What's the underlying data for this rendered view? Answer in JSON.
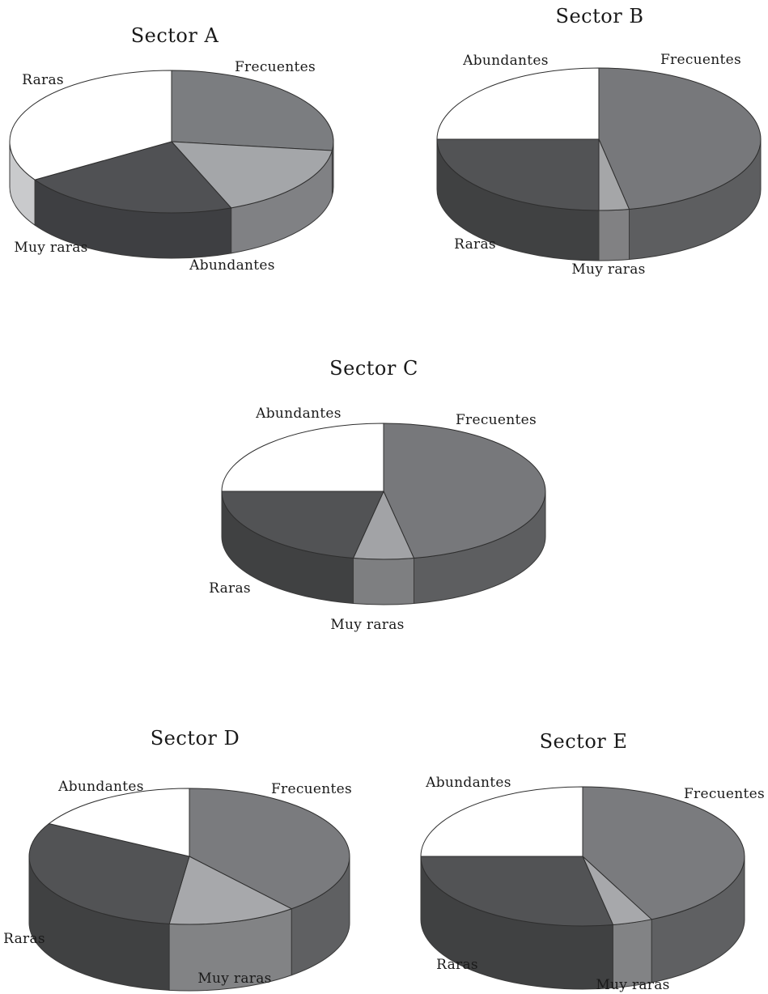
{
  "chart_data": [
    {
      "type": "pie",
      "title": "Sector A",
      "categories": [
        "Frecuentes",
        "Abundantes",
        "Muy raras",
        "Raras"
      ],
      "values": [
        27,
        17,
        22,
        34
      ],
      "colors": [
        "#7b7d80",
        "#a4a6a9",
        "#505154",
        "#ffffff"
      ]
    },
    {
      "type": "pie",
      "title": "Sector B",
      "categories": [
        "Frecuentes",
        "Muy raras",
        "Raras",
        "Abundantes"
      ],
      "values": [
        47,
        3,
        25,
        25
      ],
      "colors": [
        "#77787b",
        "#a5a6a8",
        "#525355",
        "#ffffff"
      ]
    },
    {
      "type": "pie",
      "title": "Sector C",
      "categories": [
        "Frecuentes",
        "Muy raras",
        "Raras",
        "Abundantes"
      ],
      "values": [
        47,
        6,
        22,
        25
      ],
      "colors": [
        "#77787b",
        "#a2a3a6",
        "#525355",
        "#ffffff"
      ]
    },
    {
      "type": "pie",
      "title": "Sector D",
      "categories": [
        "Frecuentes",
        "Muy raras",
        "Raras",
        "Abundantes"
      ],
      "values": [
        39,
        13,
        31,
        17
      ],
      "colors": [
        "#7a7b7e",
        "#a7a8ab",
        "#525355",
        "#ffffff"
      ]
    },
    {
      "type": "pie",
      "title": "Sector E",
      "categories": [
        "Frecuentes",
        "Muy raras",
        "Raras",
        "Abundantes"
      ],
      "values": [
        43,
        4,
        28,
        25
      ],
      "colors": [
        "#7a7b7e",
        "#a7a8ab",
        "#525355",
        "#ffffff"
      ]
    }
  ]
}
